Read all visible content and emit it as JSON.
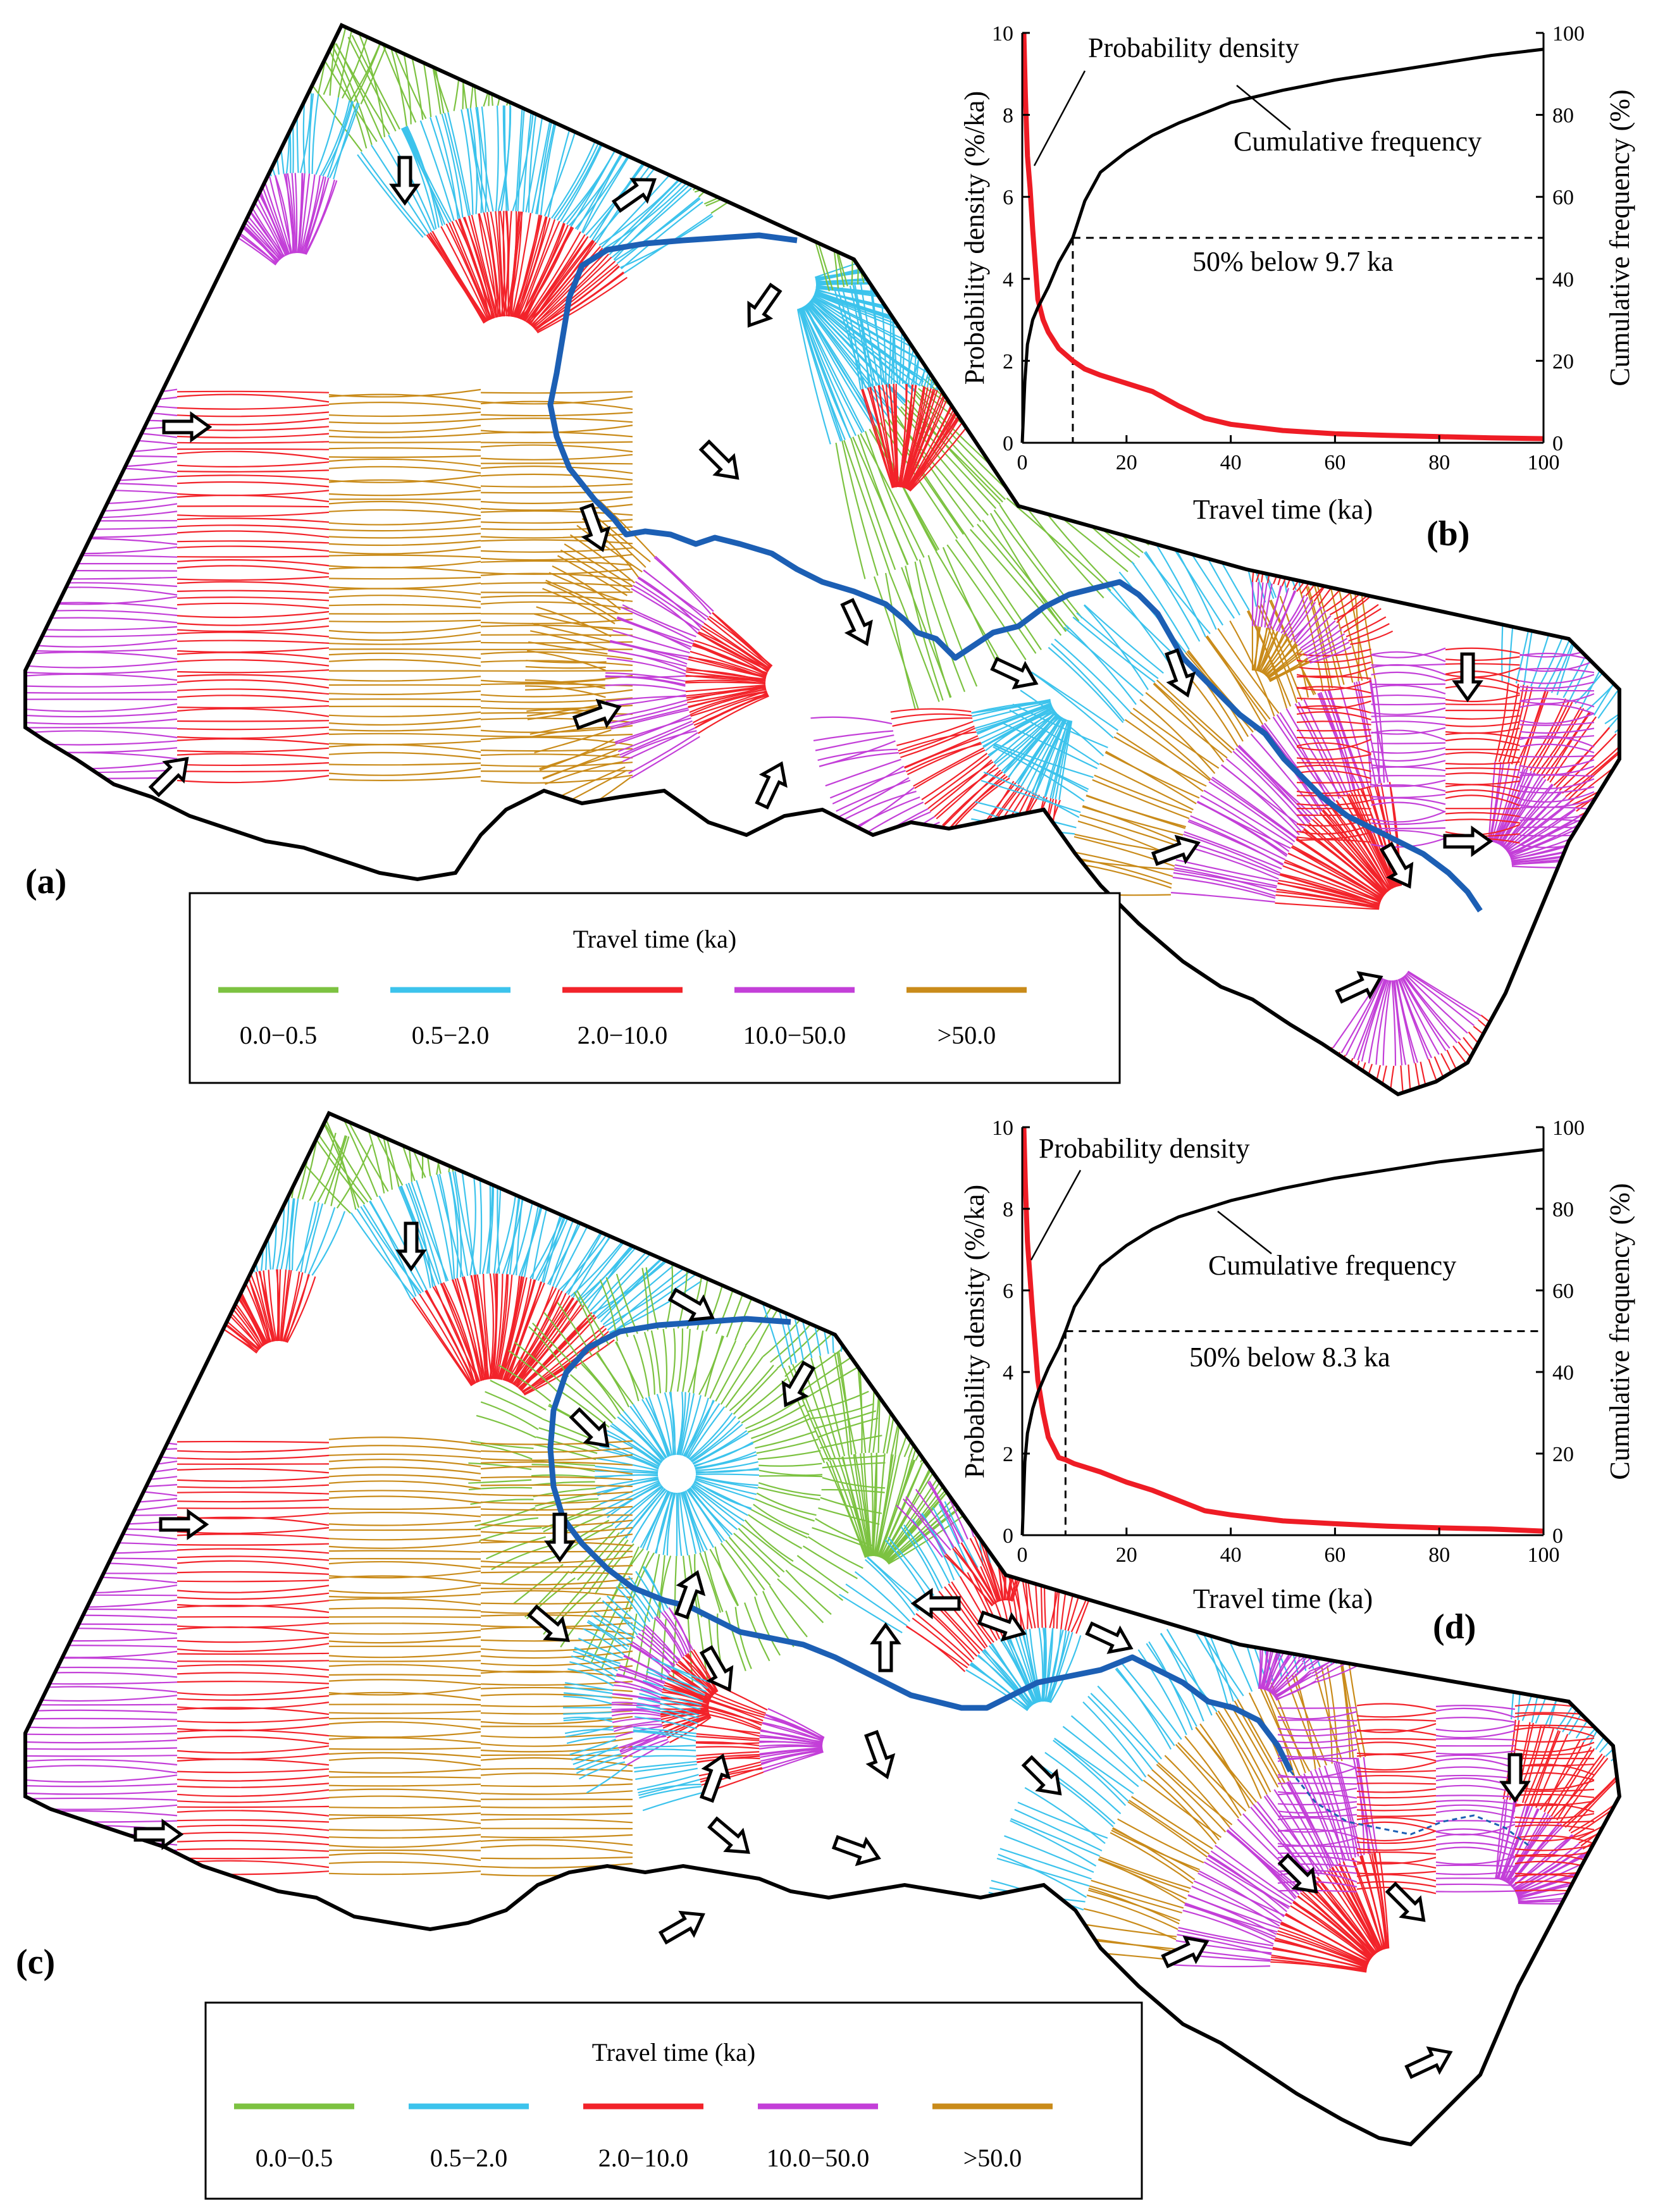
{
  "colors": {
    "c0": "#7cc241",
    "c1": "#3cc3ec",
    "c2": "#f2232a",
    "c3": "#c33fd8",
    "c4": "#c98b1a",
    "river": "#1c5fb4",
    "boundary": "#000000",
    "pdf_curve": "#ee1c25",
    "cdf_curve": "#000000"
  },
  "panels": {
    "a": "(a)",
    "b": "(b)",
    "c": "(c)",
    "d": "(d)"
  },
  "legend": {
    "title": "Travel time  (ka)",
    "classes": [
      {
        "label": "0.0−0.5",
        "color_key": "c0"
      },
      {
        "label": "0.5−2.0",
        "color_key": "c1"
      },
      {
        "label": "2.0−10.0",
        "color_key": "c2"
      },
      {
        "label": "10.0−50.0",
        "color_key": "c3"
      },
      {
        "label": ">50.0",
        "color_key": "c4"
      }
    ]
  },
  "chart_data": [
    {
      "panel": "(b)",
      "type": "line",
      "xlabel": "Travel time (ka)",
      "ylabel": "Probability density (%/ka)",
      "y2label": "Cumulative frequency (%)",
      "xlim": [
        0,
        100
      ],
      "ylim": [
        0,
        10
      ],
      "y2lim": [
        0,
        100
      ],
      "xticks": [
        0,
        20,
        40,
        60,
        80,
        100
      ],
      "yticks": [
        0,
        2,
        4,
        6,
        8,
        10
      ],
      "y2ticks": [
        0,
        20,
        40,
        60,
        80,
        100
      ],
      "series": [
        {
          "name": "Probability density",
          "axis": "left",
          "x": [
            0.3,
            0.6,
            1,
            1.5,
            2,
            3,
            4,
            5,
            7,
            9.7,
            12,
            15,
            20,
            25,
            30,
            35,
            40,
            50,
            60,
            70,
            80,
            90,
            100
          ],
          "y": [
            10,
            8.5,
            7.0,
            6.2,
            5.2,
            3.5,
            3.0,
            2.7,
            2.3,
            2.0,
            1.8,
            1.65,
            1.45,
            1.25,
            0.9,
            0.6,
            0.45,
            0.3,
            0.22,
            0.18,
            0.15,
            0.12,
            0.1
          ]
        },
        {
          "name": "Cumulative frequency",
          "axis": "right",
          "x": [
            0,
            0.5,
            1,
            2,
            3,
            5,
            7,
            9.7,
            12,
            15,
            20,
            25,
            30,
            40,
            50,
            60,
            70,
            80,
            90,
            100
          ],
          "y": [
            0,
            15,
            24,
            30,
            33,
            38,
            44,
            50,
            59,
            66,
            71,
            75,
            78,
            83,
            86,
            88.5,
            90.5,
            92.5,
            94.5,
            96
          ]
        }
      ],
      "annotations": [
        "Probability density",
        "Cumulative  frequency",
        "50% below 9.7 ka"
      ],
      "reference": {
        "x": 9.7,
        "y2": 50
      }
    },
    {
      "panel": "(d)",
      "type": "line",
      "xlabel": "Travel time (ka)",
      "ylabel": "Probability density (%/ka)",
      "y2label": "Cumulative  frequency  (%)",
      "xlim": [
        0,
        100
      ],
      "ylim": [
        0,
        10
      ],
      "y2lim": [
        0,
        100
      ],
      "xticks": [
        0,
        20,
        40,
        60,
        80,
        100
      ],
      "yticks": [
        0,
        2,
        4,
        6,
        8,
        10
      ],
      "y2ticks": [
        0,
        20,
        40,
        60,
        80,
        100
      ],
      "series": [
        {
          "name": "Probability density",
          "axis": "left",
          "x": [
            0.3,
            0.6,
            1,
            1.5,
            2,
            3,
            4,
            5,
            7,
            8.3,
            10,
            15,
            20,
            25,
            30,
            35,
            40,
            50,
            60,
            70,
            80,
            90,
            100
          ],
          "y": [
            10,
            8.6,
            7.2,
            6.3,
            5.4,
            3.8,
            3.0,
            2.4,
            1.9,
            1.85,
            1.75,
            1.55,
            1.3,
            1.1,
            0.85,
            0.6,
            0.5,
            0.35,
            0.28,
            0.22,
            0.18,
            0.15,
            0.1
          ]
        },
        {
          "name": "Cumulative frequency",
          "axis": "right",
          "x": [
            0,
            0.5,
            1,
            2,
            3,
            5,
            7,
            8.3,
            10,
            15,
            20,
            25,
            30,
            40,
            50,
            60,
            70,
            80,
            90,
            100
          ],
          "y": [
            0,
            18,
            25,
            31,
            35,
            41,
            46,
            50,
            56,
            66,
            71,
            75,
            78,
            82,
            85,
            87.5,
            89.5,
            91.5,
            93,
            94.5
          ]
        }
      ],
      "annotations": [
        "Probability density",
        "Cumulative  frequency",
        "50% below 8.3 ka"
      ],
      "reference": {
        "x": 8.3,
        "y2": 50
      }
    }
  ]
}
